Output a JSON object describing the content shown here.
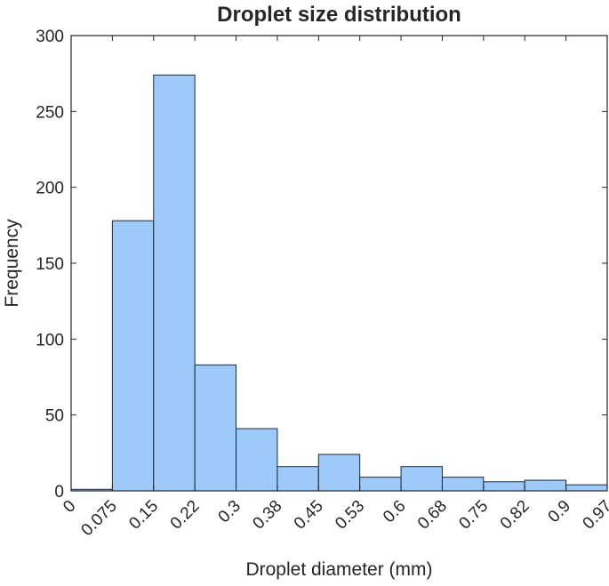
{
  "chart_data": {
    "type": "bar",
    "title": "Droplet size distribution",
    "xlabel": "Droplet diameter (mm)",
    "ylabel": "Frequency",
    "xtick_labels": [
      "0",
      "0.075",
      "0.15",
      "0.22",
      "0.3",
      "0.38",
      "0.45",
      "0.53",
      "0.6",
      "0.68",
      "0.75",
      "0.82",
      "0.9",
      "0.97"
    ],
    "yticks": [
      0,
      50,
      100,
      150,
      200,
      250,
      300
    ],
    "ylim": [
      0,
      300
    ],
    "bin_edges": [
      0,
      0.075,
      0.15,
      0.22,
      0.3,
      0.38,
      0.45,
      0.53,
      0.6,
      0.68,
      0.75,
      0.82,
      0.9,
      0.97
    ],
    "values": [
      1,
      178,
      274,
      83,
      41,
      16,
      24,
      9,
      16,
      9,
      6,
      7,
      4
    ],
    "bar_color": "#9dcaf9",
    "edge_color": "#1a2a3a",
    "axis_color": "#262626",
    "grid": false,
    "legend": false
  }
}
